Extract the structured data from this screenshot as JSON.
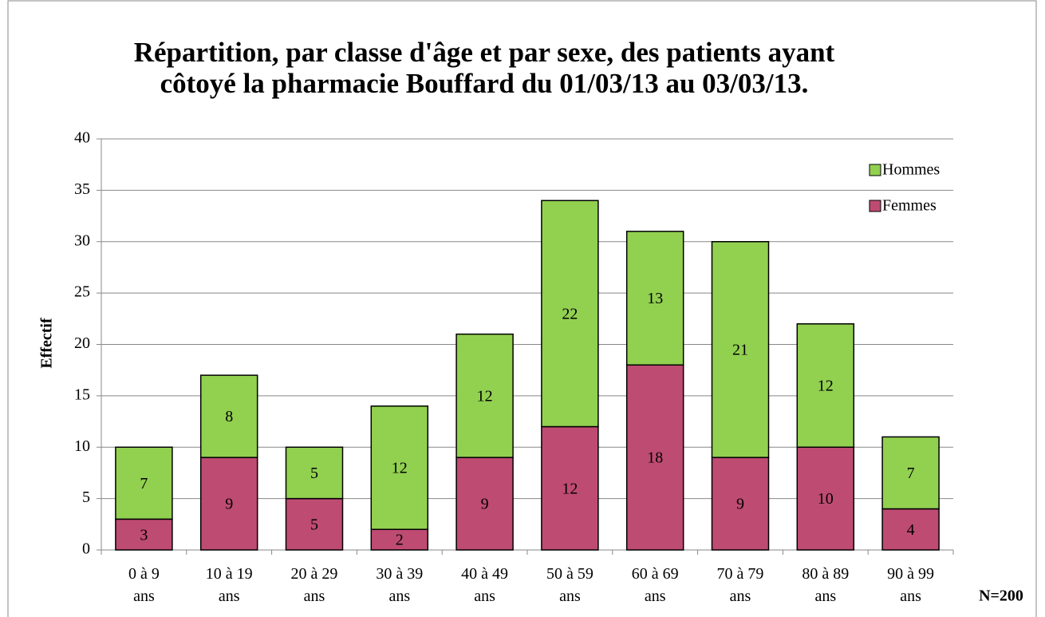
{
  "chart_data": {
    "type": "stacked_bar",
    "title": "Répartition, par classe d'âge et par sexe, des patients ayant côtoyé la pharmacie Bouffard du 01/03/13 au 03/03/13.",
    "y_label": "Effectif",
    "annotation": "N=200",
    "categories": [
      "0 à 9 ans",
      "10 à 19 ans",
      "20 à 29 ans",
      "30 à 39 ans",
      "40 à 49 ans",
      "50 à 59 ans",
      "60 à 69 ans",
      "70 à 79 ans",
      "80 à 89 ans",
      "90 à 99 ans"
    ],
    "series": [
      {
        "name": "Femmes",
        "color": "#be4b72",
        "values": [
          3,
          9,
          5,
          2,
          9,
          12,
          18,
          9,
          10,
          4
        ]
      },
      {
        "name": "Hommes",
        "color": "#92d050",
        "values": [
          7,
          8,
          5,
          12,
          12,
          22,
          13,
          21,
          12,
          7
        ]
      }
    ],
    "ylim": [
      0,
      40
    ],
    "yticks": [
      0,
      5,
      10,
      15,
      20,
      25,
      30,
      35,
      40
    ],
    "grid": true,
    "legend": "right"
  }
}
